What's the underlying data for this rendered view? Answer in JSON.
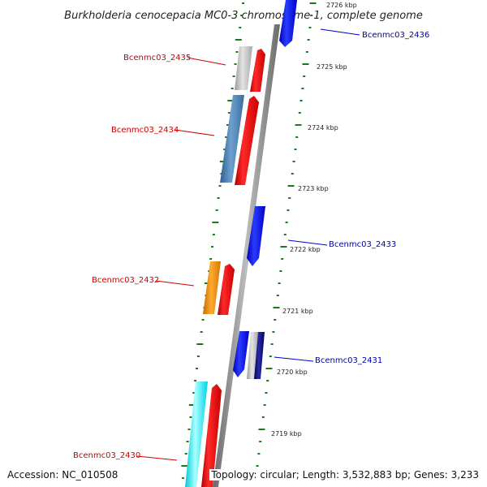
{
  "title": "Burkholderia cenocepacia MC0-3 chromosome 1, complete genome",
  "footer": {
    "accession": "Accession: NC_010508",
    "topology": "Topology: circular; Length: 3,532,883 bp; Genes: 3,233"
  },
  "colors": {
    "backbone": "#8a8a8a",
    "ticks": "#1a7a1a",
    "forward_gene": "#ff0000",
    "reverse_gene": "#0000ff",
    "forward_label": "#cc0000",
    "reverse_label": "#0000aa"
  },
  "scale_labels": [
    "2726 kbp",
    "2725 kbp",
    "2724 kbp",
    "2723 kbp",
    "2722 kbp",
    "2721 kbp",
    "2720 kbp",
    "2719 kbp"
  ],
  "gene_labels": [
    {
      "name": "Bcenmc03_2436",
      "strand": "reverse"
    },
    {
      "name": "Bcenmc03_2435",
      "strand": "forward"
    },
    {
      "name": "Bcenmc03_2434",
      "strand": "forward"
    },
    {
      "name": "Bcenmc03_2433",
      "strand": "reverse"
    },
    {
      "name": "Bcenmc03_2432",
      "strand": "forward"
    },
    {
      "name": "Bcenmc03_2431",
      "strand": "reverse"
    },
    {
      "name": "Bcenmc03_2430",
      "strand": "forward"
    }
  ]
}
